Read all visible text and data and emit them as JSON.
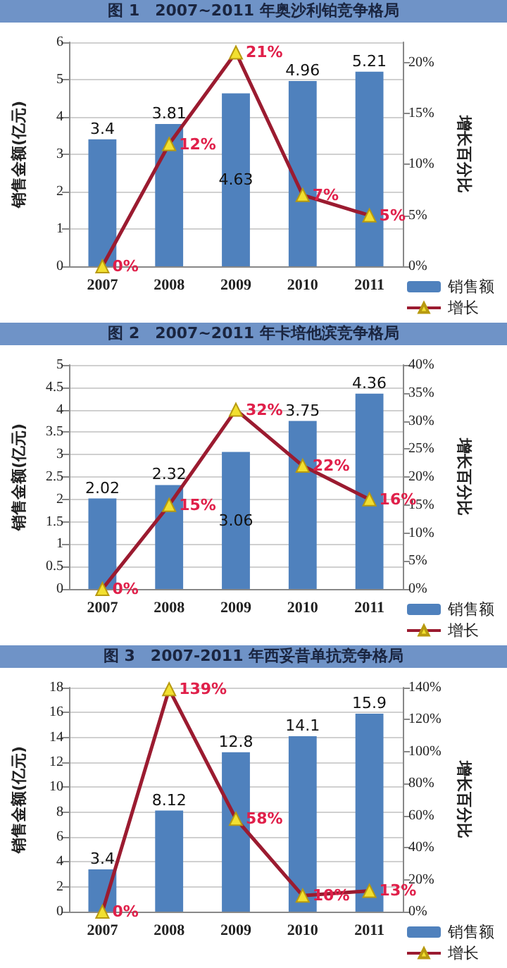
{
  "chart_data": [
    {
      "type": "bar",
      "title": "图 1　2007~2011 年奥沙利铂竞争格局",
      "categories": [
        "2007",
        "2008",
        "2009",
        "2010",
        "2011"
      ],
      "ylabel": "销售金额(亿元)",
      "y2label": "增长百分比",
      "ylim": [
        0,
        6
      ],
      "yticks": [
        0,
        1,
        2,
        3,
        4,
        5,
        6
      ],
      "y2lim": [
        0,
        22
      ],
      "y2ticks": [
        {
          "value": 0,
          "label": "0%"
        },
        {
          "value": 5,
          "label": "5%"
        },
        {
          "value": 10,
          "label": "10%"
        },
        {
          "value": 15,
          "label": "15%"
        },
        {
          "value": 20,
          "label": "20%"
        }
      ],
      "grid": "y",
      "legend": "bottom right",
      "marker": "triangle",
      "line_style": "solid",
      "series": [
        {
          "name": "销售额",
          "color": "#4f81bd",
          "values": [
            3.4,
            3.81,
            4.63,
            4.96,
            5.21
          ],
          "value_labels": [
            "3.4",
            "3.81",
            "4.63",
            "4.96",
            "5.21"
          ]
        },
        {
          "name": "增长",
          "type": "line",
          "axis": "y2",
          "color": "#9b1b30",
          "values": [
            0,
            12,
            21,
            7,
            5
          ],
          "value_labels": [
            "0%",
            "12%",
            "21%",
            "7%",
            "5%"
          ]
        }
      ]
    },
    {
      "type": "bar",
      "title": "图 2　2007~2011 年卡培他滨竞争格局",
      "categories": [
        "2007",
        "2008",
        "2009",
        "2010",
        "2011"
      ],
      "ylabel": "销售金额(亿元)",
      "y2label": "增长百分比",
      "ylim": [
        0,
        5
      ],
      "yticks": [
        0,
        0.5,
        1,
        1.5,
        2,
        2.5,
        3,
        3.5,
        4,
        4.5,
        5
      ],
      "y2lim": [
        0,
        40
      ],
      "y2ticks": [
        {
          "value": 0,
          "label": "0%"
        },
        {
          "value": 5,
          "label": "5%"
        },
        {
          "value": 10,
          "label": "10%"
        },
        {
          "value": 15,
          "label": "15%"
        },
        {
          "value": 20,
          "label": "20%"
        },
        {
          "value": 25,
          "label": "25%"
        },
        {
          "value": 30,
          "label": "30%"
        },
        {
          "value": 35,
          "label": "35%"
        },
        {
          "value": 40,
          "label": "40%"
        }
      ],
      "grid": "y",
      "legend": "bottom right",
      "marker": "triangle",
      "line_style": "solid",
      "series": [
        {
          "name": "销售额",
          "color": "#4f81bd",
          "values": [
            2.02,
            2.32,
            3.06,
            3.75,
            4.36
          ],
          "value_labels": [
            "2.02",
            "2.32",
            "3.06",
            "3.75",
            "4.36"
          ]
        },
        {
          "name": "增长",
          "type": "line",
          "axis": "y2",
          "color": "#9b1b30",
          "values": [
            0,
            15,
            32,
            22,
            16
          ],
          "value_labels": [
            "0%",
            "15%",
            "32%",
            "22%",
            "16%"
          ]
        }
      ]
    },
    {
      "type": "bar",
      "title": "图 3　2007-2011 年西妥昔单抗竞争格局",
      "categories": [
        "2007",
        "2008",
        "2009",
        "2010",
        "2011"
      ],
      "ylabel": "销售金额(亿元)",
      "y2label": "增长百分比",
      "ylim": [
        0,
        18
      ],
      "yticks": [
        0,
        2,
        4,
        6,
        8,
        10,
        12,
        14,
        16,
        18
      ],
      "y2lim": [
        0,
        140
      ],
      "y2ticks": [
        {
          "value": 0,
          "label": "0%"
        },
        {
          "value": 20,
          "label": "20%"
        },
        {
          "value": 40,
          "label": "40%"
        },
        {
          "value": 60,
          "label": "60%"
        },
        {
          "value": 80,
          "label": "80%"
        },
        {
          "value": 100,
          "label": "100%"
        },
        {
          "value": 120,
          "label": "120%"
        },
        {
          "value": 140,
          "label": "140%"
        }
      ],
      "grid": "y",
      "legend": "bottom right",
      "marker": "triangle",
      "line_style": "solid",
      "series": [
        {
          "name": "销售额",
          "color": "#4f81bd",
          "values": [
            3.4,
            8.12,
            12.8,
            14.1,
            15.9
          ],
          "value_labels": [
            "3.4",
            "8.12",
            "12.8",
            "14.1",
            "15.9"
          ]
        },
        {
          "name": "增长",
          "type": "line",
          "axis": "y2",
          "color": "#9b1b30",
          "values": [
            0,
            139,
            58,
            10,
            13
          ],
          "value_labels": [
            "0%",
            "139%",
            "58%",
            "10%",
            "13%"
          ]
        }
      ]
    }
  ]
}
